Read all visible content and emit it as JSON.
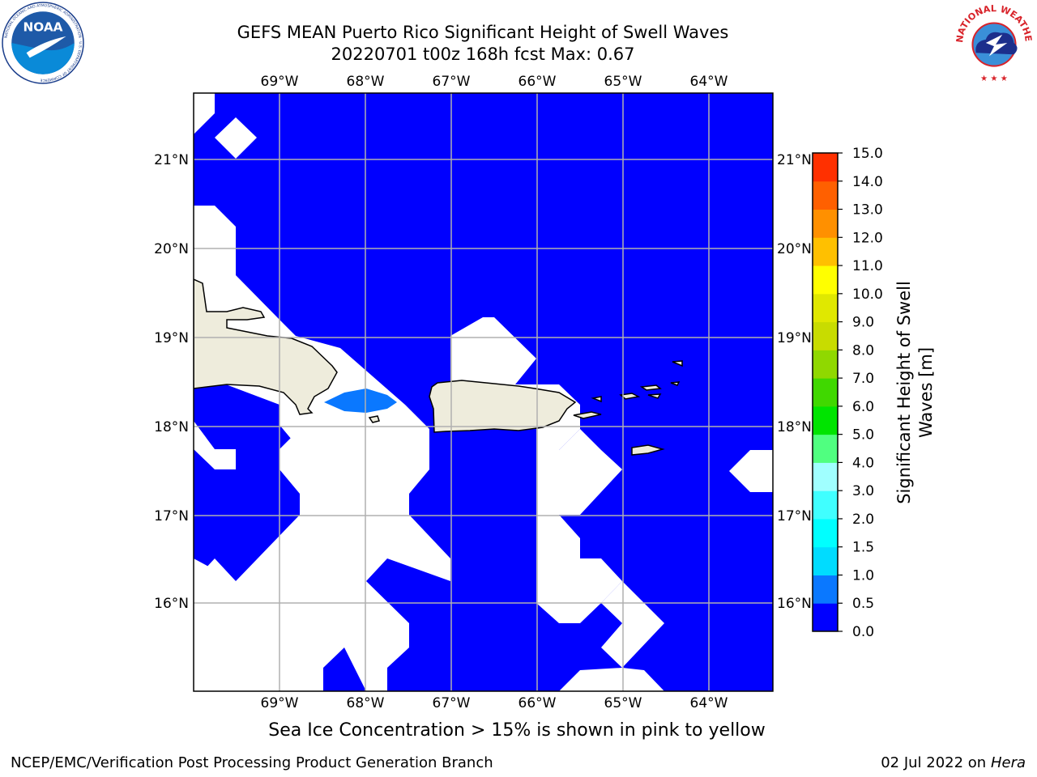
{
  "header": {
    "title_line1": "GEFS MEAN Puerto Rico Significant Height of Swell Waves",
    "title_line2": "20220701 t00z 168h fcst   Max: 0.67"
  },
  "logos": {
    "left": {
      "name": "NOAA",
      "text": "NOAA",
      "ring_text": "NATIONAL OCEANIC AND ATMOSPHERIC ADMINISTRATION · U.S. DEPARTMENT OF COMMERCE"
    },
    "right": {
      "name": "National Weather Service",
      "ring_text": "NATIONAL WEATHER SERVICE"
    }
  },
  "map": {
    "lon_labels": [
      "69°W",
      "68°W",
      "67°W",
      "66°W",
      "65°W",
      "64°W"
    ],
    "lat_labels": [
      "21°N",
      "20°N",
      "19°N",
      "18°N",
      "17°N",
      "16°N"
    ],
    "colors": {
      "ocean_low": "#0000ff",
      "ocean_mid": "#0a78ff",
      "land": "#eeecdc",
      "nodata": "#ffffff",
      "grid": "#b0b0b0"
    }
  },
  "colorbar": {
    "label": "Significant Height of Swell Waves [m]",
    "label_line1": "Significant Height of Swell",
    "label_line2": "Waves [m]",
    "ticks": [
      "0.0",
      "0.5",
      "1.0",
      "1.5",
      "2.0",
      "3.0",
      "4.0",
      "5.0",
      "6.0",
      "7.0",
      "8.0",
      "9.0",
      "10.0",
      "11.0",
      "12.0",
      "13.0",
      "14.0",
      "15.0"
    ],
    "colors": [
      "#0000ff",
      "#0a78ff",
      "#00dcff",
      "#00ffff",
      "#40ffff",
      "#a0ffff",
      "#50ff80",
      "#00e400",
      "#40d800",
      "#90d800",
      "#c8dc00",
      "#e0e800",
      "#ffff00",
      "#ffc000",
      "#ff9000",
      "#ff6000",
      "#ff3000",
      "#ff0000"
    ]
  },
  "note": "Sea Ice Concentration > 15% is shown in pink to yellow",
  "footer": {
    "left": "NCEP/EMC/Verification Post Processing Product Generation Branch",
    "right_prefix": "02 Jul 2022 on ",
    "right_host": "Hera"
  }
}
